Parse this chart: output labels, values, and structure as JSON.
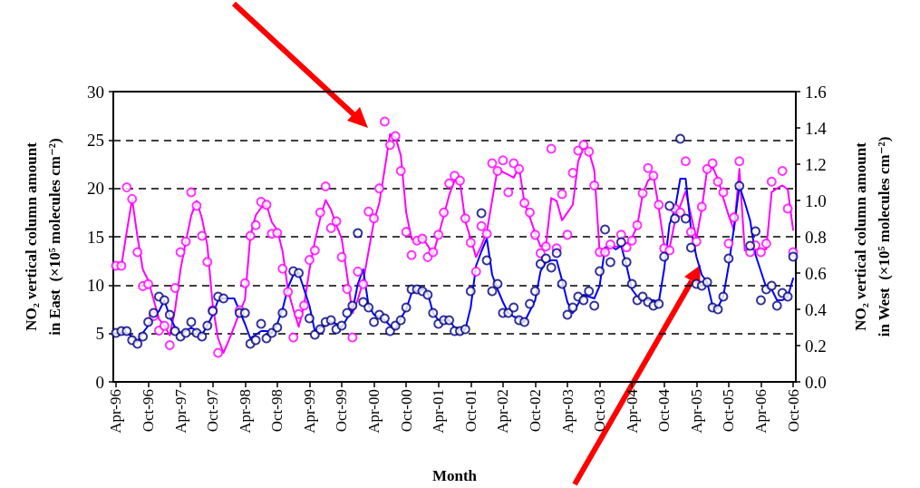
{
  "chart_data": {
    "type": "scatter",
    "xlabel": "Month",
    "ylabel": "NO₂ vertical column amount\nin East  (×10⁵ molecules cm⁻²)",
    "y2label": "NO₂ vertical column amount\nin West  (×10⁵ molecules cm⁻²)",
    "categories": [
      "Apr-96",
      null,
      null,
      null,
      null,
      null,
      "Oct-96",
      null,
      null,
      null,
      null,
      null,
      "Apr-97",
      null,
      null,
      null,
      null,
      null,
      "Oct-97",
      null,
      null,
      null,
      null,
      null,
      "Apr-98",
      null,
      null,
      null,
      null,
      null,
      "Oct-98",
      null,
      null,
      null,
      null,
      null,
      "Apr-99",
      null,
      null,
      null,
      null,
      null,
      "Oct-99",
      null,
      null,
      null,
      null,
      null,
      "Apr-00",
      null,
      null,
      null,
      null,
      null,
      "Oct-00",
      null,
      null,
      null,
      null,
      null,
      "Apr-01",
      null,
      null,
      null,
      null,
      null,
      "Oct-01",
      null,
      null,
      null,
      null,
      null,
      "Apr-02",
      null,
      null,
      null,
      null,
      null,
      "Oct-02",
      null,
      null,
      null,
      null,
      null,
      "Apr-03",
      null,
      null,
      null,
      null,
      null,
      "Oct-03",
      null,
      null,
      null,
      null,
      null,
      "Apr-04",
      null,
      null,
      null,
      null,
      null,
      "Oct-04",
      null,
      null,
      null,
      null,
      null,
      "Apr-05",
      null,
      null,
      null,
      null,
      null,
      "Oct-05",
      null,
      null,
      null,
      null,
      null,
      "Apr-06",
      null,
      null,
      null,
      null,
      null,
      "Oct-06"
    ],
    "ylim": [
      0,
      30
    ],
    "yticks": [
      0,
      5,
      10,
      15,
      20,
      25,
      30
    ],
    "y2lim": [
      0,
      1.6
    ],
    "y2ticks": [
      {
        "value": 0,
        "label": "0.0"
      },
      {
        "value": 0.2,
        "label": "0.2"
      },
      {
        "value": 0.4,
        "label": "0.4"
      },
      {
        "value": 0.6,
        "label": "0.6"
      },
      {
        "value": 0.8,
        "label": "0.8"
      },
      {
        "value": 1,
        "label": "1.0"
      },
      {
        "value": 1.2,
        "label": "1.2"
      },
      {
        "value": 1.4,
        "label": "1.4"
      },
      {
        "value": 1.6,
        "label": "1.6"
      }
    ],
    "grid": "y",
    "series": [
      {
        "marker": "circle",
        "color": "#ff00ff",
        "values": [
          12.0,
          12.0,
          20.1,
          18.9,
          13.4,
          9.9,
          10.1,
          6.8,
          5.3,
          5.8,
          3.8,
          9.7,
          13.4,
          14.5,
          19.6,
          18.2,
          15.1,
          12.4,
          7.4,
          3.0,
          null,
          null,
          null,
          7.4,
          10.2,
          15.1,
          16.2,
          18.6,
          18.3,
          15.3,
          15.4,
          11.7,
          9.3,
          4.6,
          7.0,
          7.9,
          12.6,
          13.6,
          17.5,
          20.2,
          15.9,
          16.6,
          12.9,
          9.6,
          4.6,
          11.4,
          10.1,
          17.6,
          16.9,
          20.0,
          26.9,
          24.5,
          25.4,
          21.8,
          15.5,
          13.1,
          14.6,
          14.8,
          12.9,
          13.4,
          15.2,
          17.5,
          20.5,
          21.3,
          20.8,
          16.9,
          14.4,
          11.4,
          16.1,
          15.3,
          22.6,
          21.8,
          22.9,
          19.6,
          22.6,
          22.0,
          18.5,
          17.5,
          15.2,
          13.3,
          14.0,
          24.1,
          13.8,
          19.4,
          15.2,
          21.6,
          23.9,
          24.5,
          23.8,
          20.3,
          13.4,
          13.4,
          14.2,
          null,
          15.2,
          13.9,
          14.6,
          16.2,
          19.5,
          22.1,
          21.3,
          18.3,
          13.8,
          13.6,
          17.9,
          17.5,
          22.8,
          15.5,
          14.5,
          18.1,
          22.0,
          22.6,
          20.7,
          19.6,
          14.3,
          17.0,
          22.8,
          null,
          13.4,
          14.1,
          13.4,
          14.3,
          20.7,
          null,
          21.8,
          17.9,
          13.4
        ]
      },
      {
        "type": "line",
        "marker": "none",
        "color": "#ff00ff",
        "values": [
          12,
          12,
          15.5,
          18.9,
          15,
          11.6,
          10.5,
          8.5,
          6.5,
          5.8,
          4.8,
          7.5,
          11.6,
          14.5,
          17.2,
          18.7,
          16.9,
          14.1,
          7.9,
          4.5,
          3.0,
          4.3,
          5.7,
          7.2,
          8.5,
          15.1,
          17.2,
          18.0,
          18.3,
          16.5,
          15.7,
          13.5,
          9.5,
          7.5,
          5.7,
          7.9,
          11.6,
          14.5,
          16.9,
          18.8,
          17.8,
          16.2,
          14.8,
          11.0,
          7.1,
          8.5,
          10.4,
          13.5,
          16.6,
          18.5,
          22.0,
          25.6,
          25.3,
          23.4,
          17.5,
          14.8,
          14.4,
          14.9,
          14.1,
          13.2,
          15.1,
          17.2,
          19.3,
          20.8,
          20.7,
          16.6,
          14.8,
          12.9,
          14.1,
          15.5,
          18.8,
          22.0,
          21.7,
          21.4,
          21.1,
          22.2,
          18.5,
          17.0,
          15.4,
          14.0,
          14.1,
          19.0,
          18.7,
          16.7,
          17.5,
          18.3,
          22.8,
          24.2,
          23.8,
          21.9,
          13.4,
          13.4,
          14.0,
          14.0,
          14.0,
          14.3,
          14.9,
          16.1,
          19.4,
          20.8,
          21.3,
          18.0,
          14.1,
          13.8,
          16.6,
          18.2,
          19.7,
          17.2,
          14.8,
          17.9,
          21.9,
          22.2,
          21.0,
          19.0,
          17.2,
          15.7,
          22.0,
          13.6,
          13.7,
          13.7,
          13.7,
          13.7,
          19.6,
          20.0,
          20.3,
          19.9,
          15.7
        ]
      },
      {
        "marker": "circle",
        "axis": "y2",
        "color": "#000080",
        "values": [
          0.27,
          0.28,
          0.28,
          0.23,
          0.21,
          0.25,
          0.33,
          0.38,
          0.47,
          0.45,
          0.37,
          0.28,
          0.25,
          0.27,
          0.33,
          0.27,
          0.25,
          0.31,
          0.39,
          0.47,
          0.46,
          null,
          null,
          0.38,
          0.38,
          0.21,
          0.23,
          0.32,
          0.24,
          0.27,
          0.3,
          0.38,
          null,
          0.61,
          0.6,
          null,
          0.35,
          0.26,
          0.29,
          0.33,
          0.34,
          0.29,
          0.31,
          0.38,
          0.42,
          0.82,
          0.44,
          0.41,
          0.33,
          0.37,
          0.35,
          0.28,
          0.31,
          0.34,
          0.41,
          0.51,
          0.51,
          0.5,
          0.48,
          0.38,
          0.32,
          0.34,
          0.34,
          0.28,
          0.28,
          0.29,
          0.5,
          null,
          0.93,
          0.67,
          0.5,
          0.54,
          0.38,
          0.38,
          0.41,
          0.34,
          0.33,
          0.43,
          0.5,
          0.65,
          0.68,
          0.63,
          0.71,
          0.54,
          0.37,
          0.41,
          0.47,
          0.45,
          0.5,
          0.42,
          0.61,
          0.84,
          0.66,
          null,
          0.77,
          0.66,
          0.54,
          0.45,
          0.47,
          0.44,
          0.42,
          0.43,
          0.69,
          0.97,
          0.9,
          1.34,
          0.9,
          0.74,
          0.54,
          0.53,
          0.55,
          0.41,
          0.4,
          0.47,
          0.68,
          null,
          1.08,
          null,
          0.75,
          0.83,
          0.45,
          0.51,
          0.53,
          0.42,
          0.49,
          0.47,
          0.69
        ]
      },
      {
        "type": "line",
        "marker": "none",
        "axis": "y2",
        "color": "#0000ff",
        "values": [
          0.27,
          0.27,
          0.27,
          0.25,
          0.22,
          0.27,
          0.31,
          0.36,
          0.39,
          0.45,
          0.36,
          0.3,
          0.27,
          0.28,
          0.3,
          0.28,
          0.26,
          0.31,
          0.37,
          0.45,
          0.46,
          0.46,
          0.46,
          0.39,
          0.32,
          0.24,
          0.26,
          0.28,
          0.28,
          0.27,
          0.32,
          0.4,
          0.52,
          0.59,
          0.6,
          0.51,
          0.42,
          0.28,
          0.3,
          0.31,
          0.33,
          0.32,
          0.3,
          0.35,
          0.39,
          0.54,
          0.62,
          0.42,
          0.37,
          0.36,
          0.34,
          0.31,
          0.29,
          0.35,
          0.4,
          0.49,
          0.5,
          0.51,
          0.49,
          0.38,
          0.34,
          0.34,
          0.34,
          0.3,
          0.29,
          0.29,
          0.41,
          0.64,
          0.72,
          0.79,
          0.59,
          0.51,
          0.44,
          0.38,
          0.36,
          0.35,
          0.33,
          0.39,
          0.45,
          0.61,
          0.66,
          0.67,
          0.67,
          0.56,
          0.44,
          0.38,
          0.43,
          0.48,
          0.47,
          0.46,
          0.53,
          0.74,
          0.75,
          0.73,
          0.75,
          0.64,
          0.51,
          0.47,
          0.45,
          0.45,
          0.45,
          0.44,
          0.62,
          0.87,
          0.95,
          1.12,
          1.12,
          0.84,
          0.69,
          0.59,
          0.55,
          0.42,
          0.41,
          0.47,
          0.64,
          0.85,
          1.08,
          0.99,
          0.89,
          0.7,
          0.61,
          0.52,
          0.51,
          0.45,
          0.45,
          0.47,
          0.57
        ]
      }
    ]
  }
}
